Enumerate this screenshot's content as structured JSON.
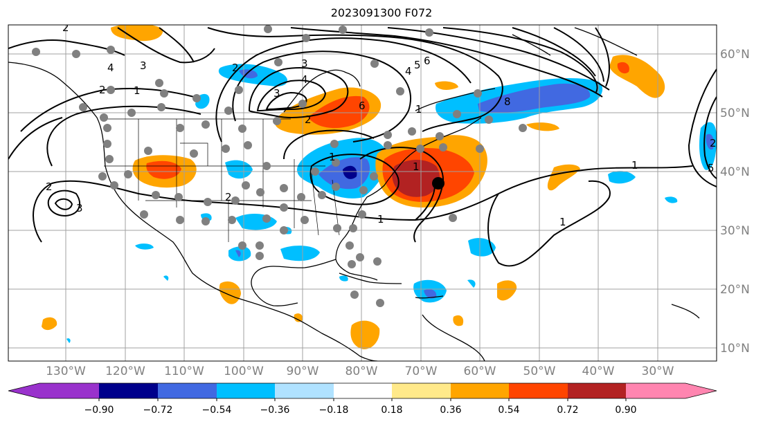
{
  "title": "2023091300 F072",
  "lon_labels": [
    "130°W",
    "120°W",
    "110°W",
    "100°W",
    "90°W",
    "80°W",
    "70°W",
    "60°W",
    "50°W",
    "40°W",
    "30°W"
  ],
  "lat_labels": [
    "60°N",
    "50°N",
    "40°N",
    "30°N",
    "20°N",
    "10°N"
  ],
  "colorbar": {
    "ticks": [
      "−0.90",
      "−0.72",
      "−0.54",
      "−0.36",
      "−0.18",
      "0.18",
      "0.36",
      "0.54",
      "0.72",
      "0.90"
    ],
    "colors": [
      "#9932cc",
      "#00008b",
      "#4169e1",
      "#00bfff",
      "#b0e2ff",
      "#ffffff",
      "#ffe98a",
      "#ffa500",
      "#ff4500",
      "#b22222",
      "#ff85b0"
    ]
  },
  "contour_labels": [
    "2",
    "4",
    "3",
    "2",
    "1",
    "3",
    "4",
    "5",
    "6",
    "8",
    "3",
    "2",
    "1",
    "1",
    "2",
    "3",
    "2",
    "2",
    "1",
    "1",
    "2",
    "1",
    "1",
    "5",
    "6",
    "4"
  ]
}
